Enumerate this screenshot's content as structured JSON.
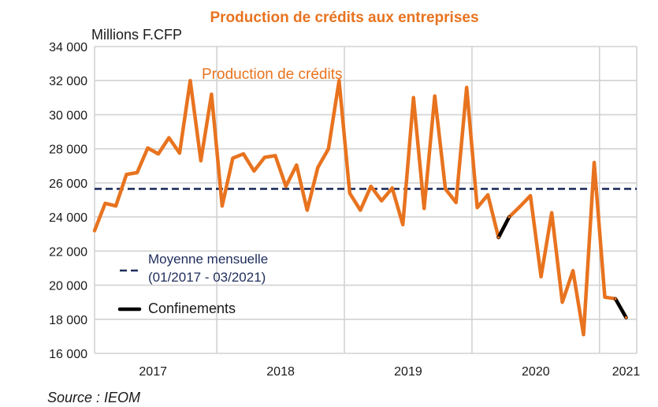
{
  "chart_data": {
    "type": "line",
    "title": "Production de crédits aux entreprises",
    "ylabel": "Millions F.CFP",
    "ylim": [
      16000,
      34000
    ],
    "yticks": [
      34000,
      32000,
      30000,
      28000,
      26000,
      24000,
      22000,
      20000,
      18000,
      16000
    ],
    "ytick_labels": [
      "34 000",
      "32 000",
      "30 000",
      "28 000",
      "26 000",
      "24 000",
      "22 000",
      "20 000",
      "18 000",
      "16 000"
    ],
    "xlim": [
      0,
      51
    ],
    "x_labels": [
      {
        "label": "2017",
        "pos": 5.5
      },
      {
        "label": "2018",
        "pos": 17.5
      },
      {
        "label": "2019",
        "pos": 29.5
      },
      {
        "label": "2020",
        "pos": 41.5
      },
      {
        "label": "2021",
        "pos": 50.0
      }
    ],
    "year_separators": [
      11.5,
      23.5,
      35.5,
      47.5
    ],
    "grid": true,
    "series": [
      {
        "name": "Production de crédits",
        "color": "#e8731f",
        "values": [
          23200,
          24800,
          24650,
          26500,
          26600,
          28050,
          27700,
          28650,
          27750,
          32000,
          27300,
          31200,
          24650,
          27450,
          27700,
          26700,
          27500,
          27600,
          25800,
          27050,
          24400,
          26900,
          28000,
          32000,
          25400,
          24400,
          25800,
          24950,
          25700,
          23550,
          31000,
          24500,
          31100,
          25650,
          24850,
          31600,
          24550,
          25300,
          22800,
          24000,
          24600,
          25250,
          20500,
          24250,
          19000,
          20850,
          17100,
          27200,
          19300,
          19200,
          18100
        ]
      },
      {
        "name": "Moyenne mensuelle (01/2017 - 03/2021)",
        "color": "#1f2d5c",
        "style": "dashed",
        "value": 25650
      }
    ],
    "highlights": {
      "name": "Confinements",
      "color": "#000000",
      "segments": [
        [
          38,
          39
        ],
        [
          49,
          50
        ]
      ]
    },
    "annotations": [
      "Production de crédits"
    ],
    "legend": [
      "Moyenne mensuelle",
      "(01/2017 - 03/2021)",
      "Confinements"
    ],
    "legend_placement": "bottom-left",
    "source": "Source : IEOM"
  }
}
